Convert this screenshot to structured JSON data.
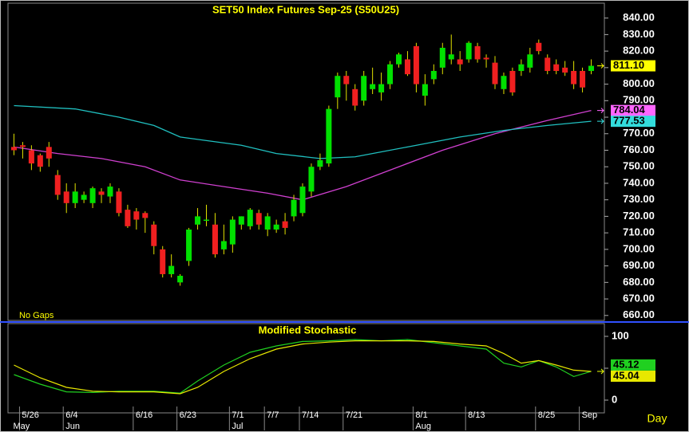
{
  "chart_data": [
    {
      "type": "candlestick",
      "title": "SET50 Index Futures Sep-25 (S50U25)",
      "note": "No Gaps",
      "categories": [
        null,
        "5/26",
        null,
        null,
        null,
        null,
        "6/4",
        null,
        null,
        null,
        null,
        null,
        null,
        null,
        "6/16",
        null,
        null,
        null,
        null,
        "6/23",
        null,
        null,
        null,
        null,
        null,
        "7/1",
        null,
        null,
        null,
        "7/7",
        null,
        null,
        null,
        "7/14",
        null,
        null,
        null,
        null,
        "7/21",
        null,
        null,
        null,
        null,
        null,
        null,
        null,
        "8/1",
        null,
        null,
        null,
        null,
        null,
        "8/13",
        null,
        null,
        null,
        null,
        null,
        null,
        null,
        "8/25",
        null,
        null,
        null,
        null,
        "Sep",
        null
      ],
      "months": [
        {
          "label": "May",
          "index": 0
        },
        {
          "label": "Jun",
          "index": 6
        },
        {
          "label": "Jul",
          "index": 25
        },
        {
          "label": "Aug",
          "index": 46
        }
      ],
      "open": [
        762,
        763,
        760,
        757,
        762,
        745,
        735,
        728,
        730,
        728,
        735,
        732,
        735,
        724,
        723,
        722,
        715,
        700,
        685,
        680,
        693,
        715,
        718,
        715,
        700,
        703,
        715,
        714,
        722,
        712,
        712,
        717,
        720,
        722,
        735,
        750,
        752,
        792,
        805,
        797,
        790,
        797,
        795,
        800,
        812,
        815,
        823,
        793,
        803,
        810,
        815,
        815,
        815,
        823,
        816,
        813,
        797,
        808,
        808,
        810,
        825,
        816,
        812,
        810,
        808,
        808,
        808
      ],
      "high": [
        770,
        765,
        763,
        758,
        765,
        748,
        740,
        740,
        735,
        738,
        737,
        740,
        737,
        727,
        725,
        723,
        717,
        702,
        697,
        685,
        713,
        725,
        727,
        722,
        715,
        720,
        720,
        725,
        724,
        722,
        718,
        722,
        733,
        740,
        752,
        758,
        787,
        807,
        808,
        800,
        808,
        810,
        807,
        814,
        819,
        820,
        825,
        806,
        812,
        825,
        830,
        820,
        826,
        825,
        818,
        817,
        807,
        810,
        815,
        822,
        827,
        818,
        815,
        814,
        814,
        810,
        815
      ],
      "low": [
        757,
        755,
        748,
        747,
        750,
        730,
        722,
        725,
        728,
        725,
        728,
        728,
        720,
        713,
        712,
        710,
        697,
        683,
        683,
        678,
        690,
        712,
        714,
        695,
        697,
        698,
        712,
        712,
        712,
        708,
        710,
        709,
        717,
        720,
        732,
        748,
        750,
        785,
        790,
        784,
        787,
        794,
        790,
        797,
        810,
        805,
        795,
        787,
        800,
        806,
        812,
        808,
        813,
        813,
        810,
        797,
        794,
        793,
        805,
        807,
        818,
        806,
        806,
        805,
        797,
        795,
        806
      ],
      "close": [
        760,
        762,
        752,
        750,
        755,
        733,
        728,
        735,
        733,
        737,
        733,
        738,
        722,
        714,
        718,
        719,
        702,
        685,
        690,
        684,
        712,
        720,
        718,
        697,
        705,
        718,
        720,
        724,
        715,
        720,
        715,
        713,
        730,
        738,
        750,
        754,
        785,
        805,
        800,
        787,
        805,
        800,
        800,
        812,
        818,
        806,
        800,
        800,
        808,
        822,
        818,
        812,
        825,
        815,
        815,
        800,
        805,
        795,
        812,
        818,
        820,
        808,
        808,
        807,
        800,
        798,
        811.1
      ],
      "last_value_label": "811.10",
      "up_color": "#00e000",
      "down_color": "#f02020",
      "lines": [
        {
          "color": "#d040d0",
          "x": [
            0,
            5,
            10,
            15,
            19,
            24,
            29,
            33,
            38,
            44,
            49,
            55,
            61,
            66
          ],
          "values": [
            762,
            758,
            755,
            750,
            742,
            738,
            734,
            730,
            738,
            750,
            760,
            770,
            778,
            784.04
          ]
        },
        {
          "color": "#20c0c0",
          "x": [
            0,
            7,
            12,
            16,
            19,
            26,
            30,
            35,
            39,
            45,
            51,
            56,
            61,
            66
          ],
          "values": [
            787,
            785,
            780,
            775,
            768,
            763,
            758,
            755,
            756,
            762,
            768,
            772,
            775,
            777.53
          ]
        }
      ],
      "ylim": [
        657,
        849
      ],
      "yticks": [
        {
          "value": 840,
          "label": "840.00"
        },
        {
          "value": 830,
          "label": "830.00"
        },
        {
          "value": 820,
          "label": "820.00"
        },
        {
          "value": 810,
          "label": "810.00"
        },
        {
          "value": 800,
          "label": "800.00"
        },
        {
          "value": 790,
          "label": "790.00"
        },
        {
          "value": 780,
          "label": "780.00"
        },
        {
          "value": 770,
          "label": "770.00"
        },
        {
          "value": 760,
          "label": "760.00"
        },
        {
          "value": 750,
          "label": "750.00"
        },
        {
          "value": 740,
          "label": "740.00"
        },
        {
          "value": 730,
          "label": "730.00"
        },
        {
          "value": 720,
          "label": "720.00"
        },
        {
          "value": 710,
          "label": "710.00"
        },
        {
          "value": 700,
          "label": "700.00"
        },
        {
          "value": 690,
          "label": "690.00"
        },
        {
          "value": 680,
          "label": "680.00"
        },
        {
          "value": 670,
          "label": "670.00"
        },
        {
          "value": 660,
          "label": "660.00"
        }
      ]
    },
    {
      "type": "line",
      "title": "Modified Stochastic",
      "xlabel": "Day",
      "series": [
        {
          "color": "#20d020",
          "x": [
            0,
            3,
            6,
            9,
            12,
            16,
            19,
            21,
            24,
            27,
            30,
            33,
            36,
            39,
            42,
            45,
            48,
            51,
            54,
            56,
            58,
            60,
            62,
            64,
            66
          ],
          "values": [
            40,
            25,
            13,
            12,
            14,
            14,
            11,
            30,
            55,
            75,
            85,
            92,
            93,
            95,
            93,
            95,
            90,
            85,
            80,
            58,
            52,
            62,
            52,
            37,
            45.12
          ]
        },
        {
          "color": "#e8e800",
          "x": [
            0,
            3,
            6,
            9,
            12,
            16,
            19,
            21,
            24,
            27,
            30,
            33,
            36,
            39,
            42,
            45,
            48,
            51,
            54,
            56,
            58,
            60,
            62,
            64,
            66
          ],
          "values": [
            55,
            35,
            20,
            14,
            13,
            13,
            10,
            20,
            45,
            65,
            80,
            88,
            91,
            93,
            93,
            93,
            92,
            88,
            85,
            73,
            58,
            62,
            55,
            47,
            45.04
          ]
        }
      ],
      "ylim": [
        -20,
        120
      ],
      "yticks": [
        0,
        50,
        100
      ]
    }
  ]
}
